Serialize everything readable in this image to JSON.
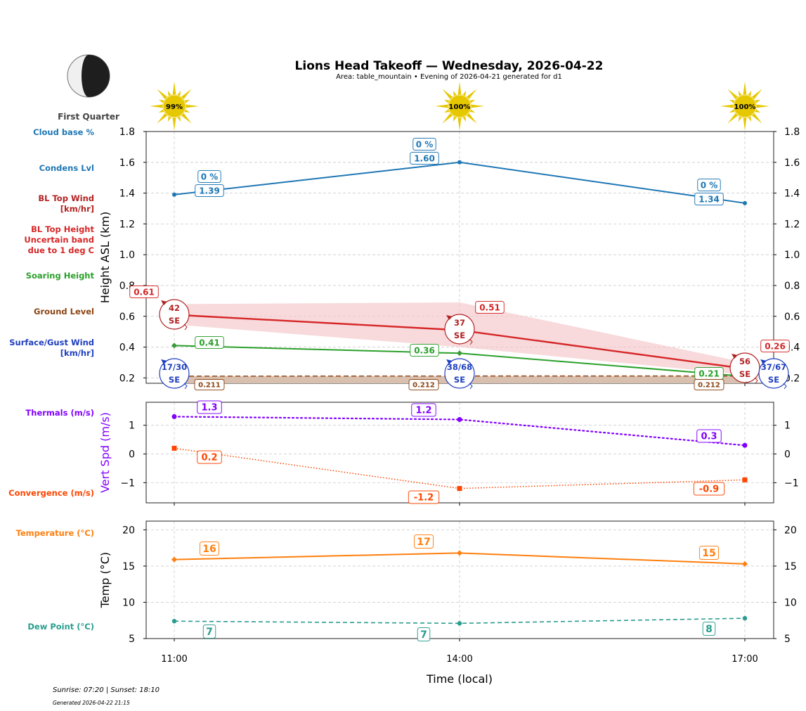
{
  "title": "Lions Head Takeoff — Wednesday, 2026-04-22",
  "subtitle": "Area: table_mountain • Evening of 2026-04-21 generated for d1",
  "moon": {
    "phase": "First Quarter"
  },
  "footer": {
    "sun": "Sunrise: 07:20 | Sunset: 18:10",
    "generated": "Generated 2026-04-22 21:15"
  },
  "colors": {
    "cloud": "#1f77b4",
    "bltop_wind": "#b22222",
    "bltop": "#d62728",
    "band": "#f4c2c4",
    "soaring": "#2ca02c",
    "ground": "#8b4513",
    "surface_wind": "#1f3fbf",
    "thermals": "#8000ff",
    "convergence": "#ff4500",
    "temp": "#ff7f0e",
    "dew": "#2a9d8f",
    "sun": "#e6c800"
  },
  "chart_data": [
    {
      "type": "line",
      "ylabel": "Height ASL (km)",
      "ylim": [
        0.165,
        1.8
      ],
      "yticks": [
        "0.2",
        "0.4",
        "0.6",
        "0.8",
        "1.0",
        "1.2",
        "1.4",
        "1.6",
        "1.8"
      ],
      "x": [
        "11:00",
        "14:00",
        "17:00"
      ],
      "grid": true,
      "sun_percent": [
        "99%",
        "100%",
        "100%"
      ],
      "left_labels": {
        "cloud_pct": "Cloud base %",
        "condens": "Condens Lvl",
        "bltop_wind": [
          "BL Top Wind",
          "[km/hr]"
        ],
        "bltop": [
          "BL Top Height",
          "Uncertain band",
          "due to 1 deg C"
        ],
        "soaring": "Soaring Height",
        "ground": "Ground Level",
        "surface_wind": [
          "Surface/Gust Wind",
          "[km/hr]"
        ]
      },
      "series": {
        "condens": {
          "values": [
            1.39,
            1.6,
            1.335
          ],
          "labels": [
            "1.39",
            "1.60",
            "1.34"
          ]
        },
        "cloud_pct": {
          "labels": [
            "0 %",
            "0 %",
            "0 %"
          ]
        },
        "bltop": {
          "values": [
            0.61,
            0.51,
            0.26
          ],
          "labels": [
            "0.61",
            "0.51",
            "0.26"
          ],
          "band_upper": [
            0.68,
            0.69,
            0.3
          ],
          "band_lower": [
            0.54,
            0.4,
            0.22
          ]
        },
        "soaring": {
          "values": [
            0.41,
            0.36,
            0.21
          ],
          "labels": [
            "0.41",
            "0.36",
            "0.21"
          ]
        },
        "ground": {
          "values": [
            0.211,
            0.212,
            0.212
          ],
          "labels": [
            "0.211",
            "0.212",
            "0.212"
          ]
        },
        "bltop_wind": {
          "speed": [
            "42",
            "37",
            "56"
          ],
          "dir": [
            "SE",
            "SE",
            "SE"
          ]
        },
        "surface_wind": {
          "speed": [
            "17/30",
            "38/68",
            "37/67"
          ],
          "dir": [
            "SE",
            "SE",
            "SE"
          ]
        }
      }
    },
    {
      "type": "line",
      "ylabel": "Vert Spd (m/s)",
      "ylim": [
        -1.7,
        1.8
      ],
      "yticks": [
        "−1",
        "0",
        "1"
      ],
      "left_labels": {
        "thermals": "Thermals (m/s)",
        "convergence": "Convergence (m/s)"
      },
      "series": {
        "thermals": {
          "values": [
            1.3,
            1.2,
            0.3
          ],
          "labels": [
            "1.3",
            "1.2",
            "0.3"
          ]
        },
        "convergence": {
          "values": [
            0.2,
            -1.2,
            -0.9
          ],
          "labels": [
            "0.2",
            "-1.2",
            "-0.9"
          ]
        }
      }
    },
    {
      "type": "line",
      "ylabel": "Temp (°C)",
      "xlabel": "Time (local)",
      "ylim": [
        5,
        21.2
      ],
      "yticks": [
        "5",
        "10",
        "15",
        "20"
      ],
      "xticks": [
        "11:00",
        "14:00",
        "17:00"
      ],
      "left_labels": {
        "temp": "Temperature (°C)",
        "dew": "Dew Point (°C)"
      },
      "series": {
        "temp": {
          "values": [
            15.9,
            16.8,
            15.3
          ],
          "labels": [
            "16",
            "17",
            "15"
          ]
        },
        "dew": {
          "values": [
            7.4,
            7.1,
            7.8
          ],
          "labels": [
            "7",
            "7",
            "8"
          ]
        }
      }
    }
  ]
}
